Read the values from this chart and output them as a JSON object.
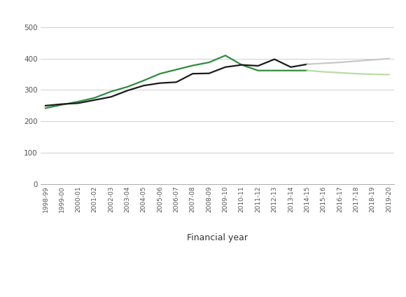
{
  "years": [
    "1998-99",
    "1999-00",
    "2000-01",
    "2001-02",
    "2002-03",
    "2003-04",
    "2004-05",
    "2005-06",
    "2006-07",
    "2007-08",
    "2008-09",
    "2009-10",
    "2010-11",
    "2011-12",
    "2012-13",
    "2013-14",
    "2014-15",
    "2015-16",
    "2016-17",
    "2017-18",
    "2018-19",
    "2019-20"
  ],
  "DEL_outturn": [
    242,
    253,
    263,
    275,
    295,
    310,
    330,
    352,
    365,
    378,
    388,
    410,
    380,
    362,
    362,
    362,
    362,
    null,
    null,
    null,
    null,
    null
  ],
  "AME_outturn": [
    250,
    255,
    258,
    268,
    278,
    298,
    314,
    322,
    325,
    352,
    353,
    373,
    380,
    377,
    398,
    373,
    382,
    null,
    null,
    null,
    null,
    null
  ],
  "DEL_forecast": [
    null,
    null,
    null,
    null,
    null,
    null,
    null,
    null,
    null,
    null,
    null,
    null,
    null,
    null,
    null,
    null,
    362,
    358,
    355,
    352,
    350,
    349
  ],
  "AME_forecast": [
    null,
    null,
    null,
    null,
    null,
    null,
    null,
    null,
    null,
    null,
    null,
    null,
    null,
    null,
    null,
    null,
    382,
    385,
    388,
    392,
    396,
    400
  ],
  "DEL_outturn_color": "#2e8b3e",
  "AME_outturn_color": "#1a1a1a",
  "DEL_forecast_color": "#b8dba8",
  "AME_forecast_color": "#c8c8c8",
  "xlabel": "Financial year",
  "yticks": [
    0,
    100,
    200,
    300,
    400,
    500
  ],
  "ylim": [
    0,
    530
  ],
  "bg_color": "#ffffff",
  "line_width": 1.6
}
